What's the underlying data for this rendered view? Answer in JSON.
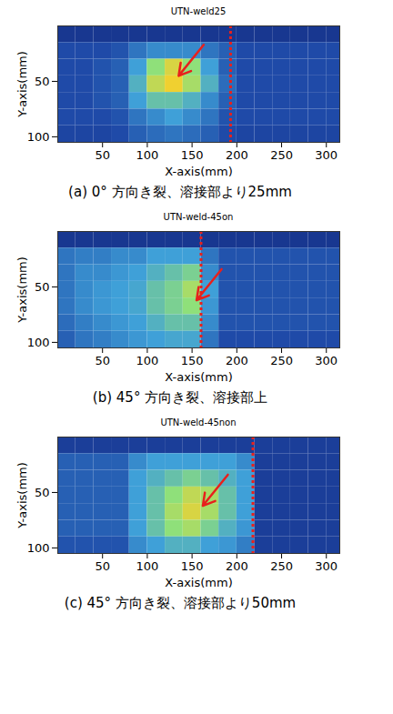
{
  "chart_data": [
    {
      "type": "heatmap",
      "title": "UTN-weld25",
      "caption": "(a) 0° 方向き裂、溶接部より25mm",
      "x_label": "X-axis(mm)",
      "y_label": "Y-axis(mm)",
      "xlim": [
        0,
        315
      ],
      "ylim": [
        0,
        105
      ],
      "xticks": [
        50,
        100,
        150,
        200,
        250,
        300
      ],
      "yticks": [
        50,
        100
      ],
      "zlim": [
        0,
        1
      ],
      "x": [
        10,
        30,
        50,
        70,
        90,
        110,
        130,
        150,
        170,
        190,
        210,
        230,
        250,
        270,
        290,
        310
      ],
      "y": [
        7.5,
        22.5,
        37.5,
        52.5,
        67.5,
        82.5,
        97.5
      ],
      "z": [
        [
          0.12,
          0.12,
          0.12,
          0.12,
          0.12,
          0.12,
          0.12,
          0.12,
          0.12,
          0.12,
          0.12,
          0.12,
          0.12,
          0.12,
          0.12,
          0.12
        ],
        [
          0.2,
          0.2,
          0.2,
          0.22,
          0.3,
          0.35,
          0.35,
          0.35,
          0.3,
          0.25,
          0.2,
          0.2,
          0.2,
          0.2,
          0.2,
          0.2
        ],
        [
          0.2,
          0.2,
          0.22,
          0.25,
          0.4,
          0.6,
          0.75,
          0.6,
          0.4,
          0.25,
          0.2,
          0.2,
          0.2,
          0.2,
          0.2,
          0.2
        ],
        [
          0.2,
          0.2,
          0.22,
          0.25,
          0.45,
          0.7,
          0.8,
          0.65,
          0.45,
          0.28,
          0.2,
          0.2,
          0.2,
          0.2,
          0.2,
          0.2
        ],
        [
          0.2,
          0.2,
          0.22,
          0.25,
          0.4,
          0.5,
          0.5,
          0.45,
          0.35,
          0.25,
          0.2,
          0.2,
          0.2,
          0.2,
          0.2,
          0.2
        ],
        [
          0.2,
          0.2,
          0.2,
          0.22,
          0.3,
          0.35,
          0.4,
          0.35,
          0.3,
          0.22,
          0.2,
          0.2,
          0.2,
          0.2,
          0.2,
          0.2
        ],
        [
          0.18,
          0.18,
          0.18,
          0.2,
          0.25,
          0.28,
          0.3,
          0.28,
          0.25,
          0.2,
          0.18,
          0.18,
          0.18,
          0.18,
          0.18,
          0.18
        ]
      ],
      "dashed_line_x": 193,
      "arrow_to": {
        "x": 135,
        "y": 45
      }
    },
    {
      "type": "heatmap",
      "title": "UTN-weld-45on",
      "caption": "(b) 45° 方向き裂、溶接部上",
      "x_label": "X-axis(mm)",
      "y_label": "Y-axis(mm)",
      "xlim": [
        0,
        315
      ],
      "ylim": [
        0,
        105
      ],
      "xticks": [
        50,
        100,
        150,
        200,
        250,
        300
      ],
      "yticks": [
        50,
        100
      ],
      "zlim": [
        0,
        1
      ],
      "x": [
        10,
        30,
        50,
        70,
        90,
        110,
        130,
        150,
        170,
        190,
        210,
        230,
        250,
        270,
        290,
        310
      ],
      "y": [
        7.5,
        22.5,
        37.5,
        52.5,
        67.5,
        82.5,
        97.5
      ],
      "z": [
        [
          0.12,
          0.12,
          0.12,
          0.12,
          0.12,
          0.12,
          0.12,
          0.12,
          0.12,
          0.12,
          0.12,
          0.12,
          0.12,
          0.12,
          0.12,
          0.12
        ],
        [
          0.3,
          0.32,
          0.32,
          0.35,
          0.35,
          0.4,
          0.4,
          0.4,
          0.3,
          0.22,
          0.22,
          0.22,
          0.22,
          0.22,
          0.22,
          0.22
        ],
        [
          0.3,
          0.35,
          0.35,
          0.38,
          0.4,
          0.45,
          0.5,
          0.55,
          0.35,
          0.22,
          0.22,
          0.22,
          0.22,
          0.22,
          0.22,
          0.22
        ],
        [
          0.3,
          0.35,
          0.38,
          0.4,
          0.42,
          0.5,
          0.55,
          0.65,
          0.4,
          0.22,
          0.22,
          0.22,
          0.22,
          0.22,
          0.22,
          0.22
        ],
        [
          0.3,
          0.35,
          0.38,
          0.4,
          0.42,
          0.5,
          0.55,
          0.6,
          0.38,
          0.22,
          0.22,
          0.22,
          0.22,
          0.22,
          0.22,
          0.22
        ],
        [
          0.28,
          0.32,
          0.35,
          0.38,
          0.4,
          0.45,
          0.5,
          0.5,
          0.35,
          0.22,
          0.22,
          0.22,
          0.22,
          0.22,
          0.22,
          0.22
        ],
        [
          0.25,
          0.3,
          0.32,
          0.35,
          0.38,
          0.4,
          0.42,
          0.42,
          0.3,
          0.2,
          0.2,
          0.2,
          0.2,
          0.2,
          0.2,
          0.2
        ]
      ],
      "dashed_line_x": 160,
      "arrow_to": {
        "x": 155,
        "y": 62
      }
    },
    {
      "type": "heatmap",
      "title": "UTN-weld-45non",
      "caption": "(c) 45° 方向き裂、溶接部より50mm",
      "x_label": "X-axis(mm)",
      "y_label": "Y-axis(mm)",
      "xlim": [
        0,
        315
      ],
      "ylim": [
        0,
        105
      ],
      "xticks": [
        50,
        100,
        150,
        200,
        250,
        300
      ],
      "yticks": [
        50,
        100
      ],
      "zlim": [
        0,
        1
      ],
      "x": [
        10,
        30,
        50,
        70,
        90,
        110,
        130,
        150,
        170,
        190,
        210,
        230,
        250,
        270,
        290,
        310
      ],
      "y": [
        7.5,
        22.5,
        37.5,
        52.5,
        67.5,
        82.5,
        97.5
      ],
      "z": [
        [
          0.15,
          0.15,
          0.15,
          0.15,
          0.15,
          0.15,
          0.15,
          0.15,
          0.15,
          0.15,
          0.15,
          0.15,
          0.15,
          0.15,
          0.15,
          0.15
        ],
        [
          0.25,
          0.25,
          0.25,
          0.25,
          0.35,
          0.4,
          0.4,
          0.4,
          0.4,
          0.4,
          0.35,
          0.15,
          0.15,
          0.15,
          0.15,
          0.15
        ],
        [
          0.25,
          0.25,
          0.25,
          0.25,
          0.4,
          0.45,
          0.5,
          0.55,
          0.5,
          0.45,
          0.4,
          0.15,
          0.15,
          0.15,
          0.15,
          0.15
        ],
        [
          0.25,
          0.25,
          0.25,
          0.25,
          0.4,
          0.5,
          0.6,
          0.7,
          0.65,
          0.5,
          0.4,
          0.15,
          0.15,
          0.15,
          0.15,
          0.15
        ],
        [
          0.25,
          0.25,
          0.25,
          0.25,
          0.4,
          0.5,
          0.65,
          0.75,
          0.65,
          0.5,
          0.4,
          0.15,
          0.15,
          0.15,
          0.15,
          0.15
        ],
        [
          0.25,
          0.25,
          0.25,
          0.25,
          0.4,
          0.5,
          0.6,
          0.65,
          0.55,
          0.45,
          0.38,
          0.15,
          0.15,
          0.15,
          0.15,
          0.15
        ],
        [
          0.22,
          0.22,
          0.22,
          0.22,
          0.35,
          0.4,
          0.45,
          0.45,
          0.4,
          0.38,
          0.32,
          0.15,
          0.15,
          0.15,
          0.15,
          0.15
        ]
      ],
      "dashed_line_x": 218,
      "arrow_to": {
        "x": 162,
        "y": 62
      }
    }
  ]
}
